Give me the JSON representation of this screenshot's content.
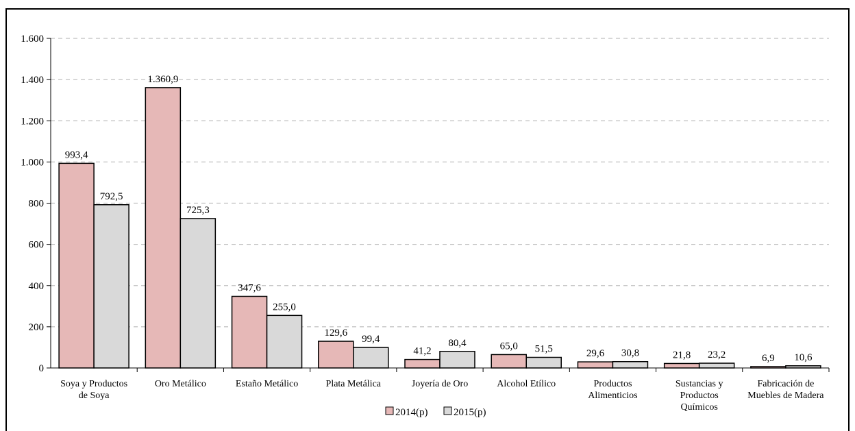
{
  "chart_data": {
    "type": "bar",
    "categories": [
      [
        "Soya y Productos",
        "de Soya"
      ],
      [
        "Oro Metálico"
      ],
      [
        "Estaño Metálico"
      ],
      [
        "Plata Metálica"
      ],
      [
        "Joyería de Oro"
      ],
      [
        "Alcohol Etílico"
      ],
      [
        "Productos",
        "Alimenticios"
      ],
      [
        "Sustancias y",
        "Productos",
        "Químicos"
      ],
      [
        "Fabricación de",
        "Muebles de Madera"
      ]
    ],
    "series": [
      {
        "name": "2014(p)",
        "color": "#e6b8b7",
        "values": [
          993.4,
          1360.9,
          347.6,
          129.6,
          41.2,
          65.0,
          29.6,
          21.8,
          6.9
        ],
        "labels": [
          "993,4",
          "1.360,9",
          "347,6",
          "129,6",
          "41,2",
          "65,0",
          "29,6",
          "21,8",
          "6,9"
        ]
      },
      {
        "name": "2015(p)",
        "color": "#d9d9d9",
        "values": [
          792.5,
          725.3,
          255.0,
          99.4,
          80.4,
          51.5,
          30.8,
          23.2,
          10.6
        ],
        "labels": [
          "792,5",
          "725,3",
          "255,0",
          "99,4",
          "80,4",
          "51,5",
          "30,8",
          "23,2",
          "10,6"
        ]
      }
    ],
    "ylim": [
      0,
      1600
    ],
    "yticks": [
      0,
      200,
      400,
      600,
      800,
      1000,
      1200,
      1400,
      1600
    ],
    "ytick_labels": [
      "0",
      "200",
      "400",
      "600",
      "800",
      "1.000",
      "1.200",
      "1.400",
      "1.600"
    ],
    "grid": "horizontal dashed",
    "legend_position": "bottom-center",
    "title": "",
    "xlabel": "",
    "ylabel": ""
  }
}
